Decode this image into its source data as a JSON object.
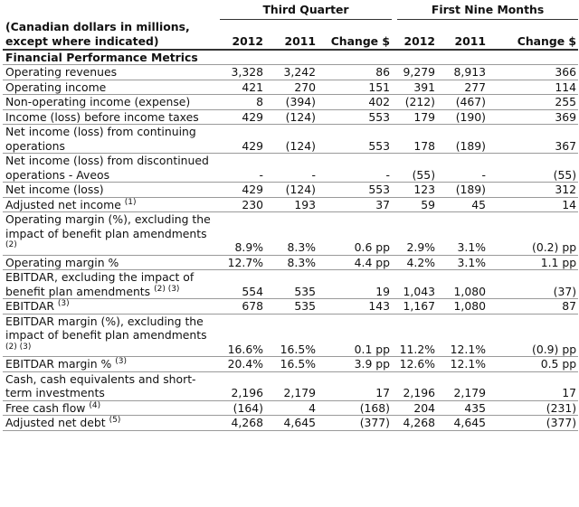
{
  "header": {
    "q_group": "Third Quarter",
    "n_group": "First Nine Months",
    "label": "(Canadian dollars in millions, except where indicated)",
    "cols": [
      "2012",
      "2011",
      "Change $",
      "2012",
      "2011",
      "Change $"
    ]
  },
  "section_title": "Financial Performance Metrics",
  "rows": [
    {
      "label": "Operating revenues",
      "sup": "",
      "v": [
        "3,328",
        "3,242",
        "86",
        "9,279",
        "8,913",
        "366"
      ]
    },
    {
      "label": "Operating income",
      "sup": "",
      "v": [
        "421",
        "270",
        "151",
        "391",
        "277",
        "114"
      ]
    },
    {
      "label": "Non-operating income (expense)",
      "sup": "",
      "v": [
        "8",
        "(394)",
        "402",
        "(212)",
        "(467)",
        "255"
      ]
    },
    {
      "label": "Income (loss) before income taxes",
      "sup": "",
      "v": [
        "429",
        "(124)",
        "553",
        "179",
        "(190)",
        "369"
      ]
    },
    {
      "label": "Net income (loss) from continuing operations",
      "sup": "",
      "v": [
        "429",
        "(124)",
        "553",
        "178",
        "(189)",
        "367"
      ]
    },
    {
      "label": "Net income (loss) from discontinued operations - Aveos",
      "sup": "",
      "v": [
        "-",
        "-",
        "-",
        "(55)",
        "-",
        "(55)"
      ]
    },
    {
      "label": "Net income (loss)",
      "sup": "",
      "v": [
        "429",
        "(124)",
        "553",
        "123",
        "(189)",
        "312"
      ]
    },
    {
      "label": "Adjusted net income",
      "sup": "(1)",
      "v": [
        "230",
        "193",
        "37",
        "59",
        "45",
        "14"
      ]
    },
    {
      "label": "Operating margin (%), excluding the impact of benefit plan amendments",
      "sup": "(2)",
      "v": [
        "8.9%",
        "8.3%",
        "0.6 pp",
        "2.9%",
        "3.1%",
        "(0.2) pp"
      ]
    },
    {
      "label": "Operating margin %",
      "sup": "",
      "v": [
        "12.7%",
        "8.3%",
        "4.4 pp",
        "4.2%",
        "3.1%",
        "1.1 pp"
      ]
    },
    {
      "label": "EBITDAR, excluding the impact of benefit plan amendments",
      "sup": "(2) (3)",
      "v": [
        "554",
        "535",
        "19",
        "1,043",
        "1,080",
        "(37)"
      ]
    },
    {
      "label": "EBITDAR",
      "sup": "(3)",
      "v": [
        "678",
        "535",
        "143",
        "1,167",
        "1,080",
        "87"
      ]
    },
    {
      "label": "EBITDAR margin (%), excluding the impact of benefit plan amendments",
      "sup": "(2) (3)",
      "v": [
        "16.6%",
        "16.5%",
        "0.1 pp",
        "11.2%",
        "12.1%",
        "(0.9) pp"
      ]
    },
    {
      "label": "EBITDAR margin %",
      "sup": "(3)",
      "v": [
        "20.4%",
        "16.5%",
        "3.9 pp",
        "12.6%",
        "12.1%",
        "0.5 pp"
      ]
    },
    {
      "label": "Cash, cash equivalents and short-term investments",
      "sup": "",
      "v": [
        "2,196",
        "2,179",
        "17",
        "2,196",
        "2,179",
        "17"
      ]
    },
    {
      "label": "Free cash flow",
      "sup": "(4)",
      "v": [
        "(164)",
        "4",
        "(168)",
        "204",
        "435",
        "(231)"
      ]
    },
    {
      "label": "Adjusted net debt",
      "sup": "(5)",
      "v": [
        "4,268",
        "4,645",
        "(377)",
        "4,268",
        "4,645",
        "(377)"
      ]
    }
  ]
}
